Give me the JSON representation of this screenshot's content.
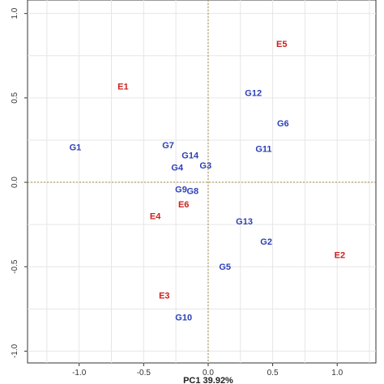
{
  "chart_data": {
    "type": "scatter",
    "title": "",
    "xlabel": "PC1 39.92%",
    "ylabel": "",
    "xlim": [
      -1.4,
      1.3
    ],
    "ylim": [
      -1.07,
      1.08
    ],
    "x_ticks": [
      -1.0,
      -0.5,
      0.0,
      0.5,
      1.0
    ],
    "x_tick_labels": [
      "-1.0",
      "-0.5",
      "0.0",
      "0.5",
      "1.0"
    ],
    "y_ticks": [
      -1.0,
      -0.5,
      0.0,
      0.5,
      1.0
    ],
    "y_tick_labels": [
      "-1.0",
      "-0.5",
      "0.0",
      "0.5",
      "1.0"
    ],
    "grid": true,
    "reference_lines": {
      "x": 0,
      "y": 0
    },
    "series": [
      {
        "color": "#cc1f1f",
        "points": [
          {
            "label": "E1",
            "x": -0.66,
            "y": 0.57
          },
          {
            "label": "E2",
            "x": 1.02,
            "y": -0.43
          },
          {
            "label": "E3",
            "x": -0.34,
            "y": -0.67
          },
          {
            "label": "E4",
            "x": -0.41,
            "y": -0.2
          },
          {
            "label": "E5",
            "x": 0.57,
            "y": 0.82
          },
          {
            "label": "E6",
            "x": -0.19,
            "y": -0.13
          }
        ]
      },
      {
        "color": "#2b3fb8",
        "points": [
          {
            "label": "G1",
            "x": -1.03,
            "y": 0.21
          },
          {
            "label": "G2",
            "x": 0.45,
            "y": -0.35
          },
          {
            "label": "G3",
            "x": -0.02,
            "y": 0.1
          },
          {
            "label": "G4",
            "x": -0.24,
            "y": 0.09
          },
          {
            "label": "G5",
            "x": 0.13,
            "y": -0.5
          },
          {
            "label": "G6",
            "x": 0.58,
            "y": 0.35
          },
          {
            "label": "G7",
            "x": -0.31,
            "y": 0.22
          },
          {
            "label": "G8",
            "x": -0.12,
            "y": -0.05
          },
          {
            "label": "G9",
            "x": -0.21,
            "y": -0.04
          },
          {
            "label": "G10",
            "x": -0.19,
            "y": -0.8
          },
          {
            "label": "G11",
            "x": 0.43,
            "y": 0.2
          },
          {
            "label": "G12",
            "x": 0.35,
            "y": 0.53
          },
          {
            "label": "G13",
            "x": 0.28,
            "y": -0.23
          },
          {
            "label": "G14",
            "x": -0.14,
            "y": 0.16
          }
        ]
      }
    ]
  }
}
